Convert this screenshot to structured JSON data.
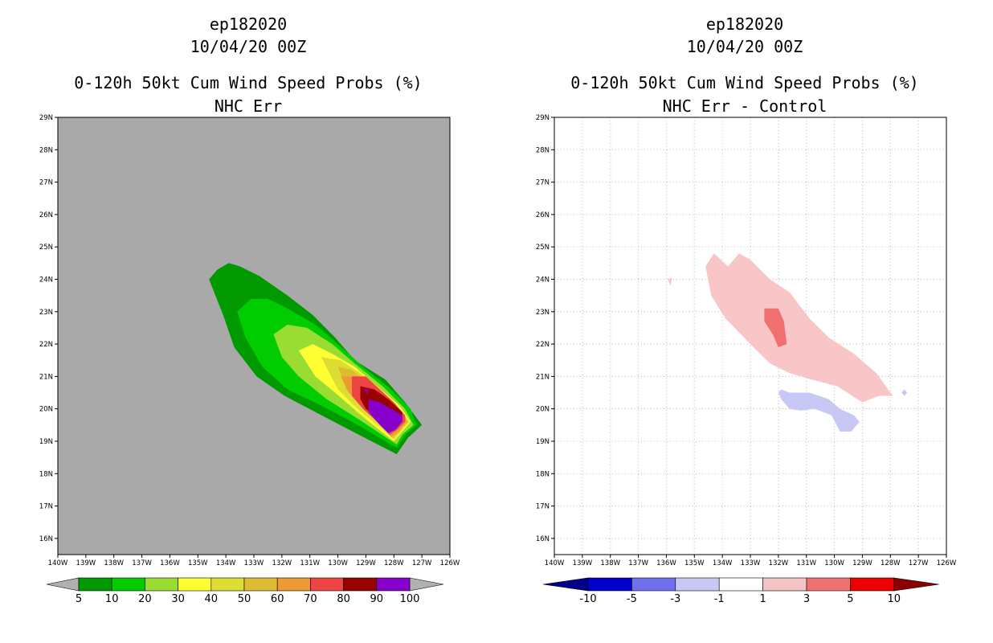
{
  "chart_data": [
    {
      "type": "heatmap",
      "storm_id": "ep182020",
      "date": "10/04/20 00Z",
      "title": "0-120h 50kt Cum Wind Speed Probs (%)",
      "subtitle": "NHC Err",
      "xlim": [
        -140,
        -126
      ],
      "ylim": [
        15.5,
        29
      ],
      "x_ticks": [
        "140W",
        "139W",
        "138W",
        "137W",
        "136W",
        "135W",
        "134W",
        "133W",
        "132W",
        "131W",
        "130W",
        "129W",
        "128W",
        "127W",
        "126W"
      ],
      "y_ticks": [
        "16N",
        "17N",
        "18N",
        "19N",
        "20N",
        "21N",
        "22N",
        "23N",
        "24N",
        "25N",
        "26N",
        "27N",
        "28N",
        "29N"
      ],
      "grid": false,
      "background_color": "#a9a9a9",
      "colorbar": {
        "labels": [
          "5",
          "10",
          "20",
          "30",
          "40",
          "50",
          "60",
          "70",
          "80",
          "90",
          "100"
        ],
        "colors": [
          "#009900",
          "#00cc00",
          "#99dd33",
          "#ffff33",
          "#dddd33",
          "#ddbb33",
          "#ee9933",
          "#ee4444",
          "#990000",
          "#8800cc"
        ],
        "end_colors": [
          "#b0b0b0",
          "#b0b0b0"
        ]
      },
      "contours": [
        {
          "level": 5,
          "color": "#009900",
          "points": [
            [
              -134.6,
              24.0
            ],
            [
              -134.3,
              24.3
            ],
            [
              -133.9,
              24.5
            ],
            [
              -133.5,
              24.4
            ],
            [
              -132.8,
              24.1
            ],
            [
              -131.8,
              23.5
            ],
            [
              -130.9,
              22.9
            ],
            [
              -130.1,
              22.2
            ],
            [
              -129.4,
              21.5
            ],
            [
              -128.3,
              20.9
            ],
            [
              -127.6,
              20.2
            ],
            [
              -127.0,
              19.5
            ],
            [
              -127.5,
              19.1
            ],
            [
              -127.9,
              18.6
            ],
            [
              -128.8,
              19.0
            ],
            [
              -129.7,
              19.4
            ],
            [
              -130.8,
              19.9
            ],
            [
              -131.9,
              20.4
            ],
            [
              -132.9,
              21.0
            ],
            [
              -133.7,
              21.9
            ],
            [
              -134.1,
              22.9
            ],
            [
              -134.6,
              24.0
            ]
          ]
        },
        {
          "level": 10,
          "color": "#00cc00",
          "points": [
            [
              -133.6,
              23.0
            ],
            [
              -133.1,
              23.4
            ],
            [
              -132.5,
              23.4
            ],
            [
              -131.8,
              23.1
            ],
            [
              -130.8,
              22.6
            ],
            [
              -130.0,
              22.0
            ],
            [
              -129.1,
              21.3
            ],
            [
              -128.1,
              20.6
            ],
            [
              -127.4,
              20.0
            ],
            [
              -127.2,
              19.5
            ],
            [
              -127.6,
              19.2
            ],
            [
              -127.9,
              18.8
            ],
            [
              -128.7,
              19.2
            ],
            [
              -129.5,
              19.6
            ],
            [
              -130.6,
              20.1
            ],
            [
              -131.8,
              20.6
            ],
            [
              -132.7,
              21.3
            ],
            [
              -133.3,
              22.2
            ],
            [
              -133.6,
              23.0
            ]
          ]
        },
        {
          "level": 20,
          "color": "#99dd33",
          "points": [
            [
              -132.3,
              22.3
            ],
            [
              -131.8,
              22.6
            ],
            [
              -131.1,
              22.5
            ],
            [
              -130.2,
              22.0
            ],
            [
              -129.4,
              21.4
            ],
            [
              -128.4,
              20.7
            ],
            [
              -127.6,
              20.0
            ],
            [
              -127.3,
              19.5
            ],
            [
              -127.7,
              19.2
            ],
            [
              -127.9,
              18.9
            ],
            [
              -128.6,
              19.3
            ],
            [
              -129.3,
              19.7
            ],
            [
              -130.4,
              20.3
            ],
            [
              -131.4,
              21.0
            ],
            [
              -132.0,
              21.6
            ],
            [
              -132.3,
              22.3
            ]
          ]
        },
        {
          "level": 30,
          "color": "#ffff33",
          "points": [
            [
              -131.4,
              21.8
            ],
            [
              -130.9,
              22.0
            ],
            [
              -130.2,
              21.7
            ],
            [
              -129.4,
              21.3
            ],
            [
              -128.6,
              20.7
            ],
            [
              -127.8,
              20.1
            ],
            [
              -127.4,
              19.6
            ],
            [
              -127.7,
              19.3
            ],
            [
              -128.0,
              19.0
            ],
            [
              -128.6,
              19.4
            ],
            [
              -129.3,
              19.9
            ],
            [
              -130.1,
              20.5
            ],
            [
              -130.8,
              21.0
            ],
            [
              -131.4,
              21.8
            ]
          ]
        },
        {
          "level": 40,
          "color": "#dddd33",
          "points": [
            [
              -130.6,
              21.6
            ],
            [
              -129.9,
              21.5
            ],
            [
              -129.2,
              21.1
            ],
            [
              -128.5,
              20.6
            ],
            [
              -127.8,
              20.0
            ],
            [
              -127.45,
              19.6
            ],
            [
              -127.75,
              19.3
            ],
            [
              -128.0,
              19.05
            ],
            [
              -128.6,
              19.5
            ],
            [
              -129.3,
              20.0
            ],
            [
              -130.0,
              20.6
            ],
            [
              -130.6,
              21.6
            ]
          ]
        },
        {
          "level": 50,
          "color": "#ddbb33",
          "points": [
            [
              -130.0,
              21.3
            ],
            [
              -129.5,
              21.2
            ],
            [
              -128.9,
              20.8
            ],
            [
              -128.3,
              20.4
            ],
            [
              -127.7,
              19.9
            ],
            [
              -127.5,
              19.6
            ],
            [
              -127.8,
              19.3
            ],
            [
              -128.05,
              19.1
            ],
            [
              -128.6,
              19.6
            ],
            [
              -129.2,
              20.1
            ],
            [
              -129.7,
              20.6
            ],
            [
              -130.0,
              21.3
            ]
          ]
        },
        {
          "level": 60,
          "color": "#ee9933",
          "points": [
            [
              -129.9,
              21.0
            ],
            [
              -129.3,
              21.0
            ],
            [
              -128.7,
              20.6
            ],
            [
              -128.1,
              20.2
            ],
            [
              -127.6,
              19.8
            ],
            [
              -127.55,
              19.6
            ],
            [
              -127.85,
              19.3
            ],
            [
              -128.1,
              19.15
            ],
            [
              -128.6,
              19.6
            ],
            [
              -129.2,
              20.1
            ],
            [
              -129.6,
              20.5
            ],
            [
              -129.9,
              21.0
            ]
          ]
        },
        {
          "level": 70,
          "color": "#ee4444",
          "points": [
            [
              -129.5,
              21.0
            ],
            [
              -129.0,
              21.0
            ],
            [
              -128.5,
              20.6
            ],
            [
              -128.0,
              20.2
            ],
            [
              -127.6,
              19.8
            ],
            [
              -127.6,
              19.6
            ],
            [
              -127.9,
              19.35
            ],
            [
              -128.15,
              19.2
            ],
            [
              -128.6,
              19.6
            ],
            [
              -129.1,
              20.0
            ],
            [
              -129.5,
              20.4
            ],
            [
              -129.5,
              21.0
            ]
          ]
        },
        {
          "level": 80,
          "color": "#990000",
          "points": [
            [
              -129.2,
              20.7
            ],
            [
              -128.7,
              20.6
            ],
            [
              -128.2,
              20.3
            ],
            [
              -127.7,
              19.9
            ],
            [
              -127.7,
              19.6
            ],
            [
              -128.0,
              19.4
            ],
            [
              -128.2,
              19.3
            ],
            [
              -128.6,
              19.7
            ],
            [
              -129.0,
              20.0
            ],
            [
              -129.2,
              20.3
            ],
            [
              -129.2,
              20.7
            ]
          ]
        },
        {
          "level": 90,
          "color": "#8800cc",
          "points": [
            [
              -128.9,
              20.3
            ],
            [
              -128.5,
              20.2
            ],
            [
              -128.1,
              20.0
            ],
            [
              -127.7,
              19.8
            ],
            [
              -127.7,
              19.6
            ],
            [
              -127.95,
              19.35
            ],
            [
              -128.2,
              19.25
            ],
            [
              -128.5,
              19.5
            ],
            [
              -128.9,
              19.9
            ],
            [
              -128.9,
              20.3
            ]
          ]
        },
        {
          "level": 90,
          "color": "#8800cc",
          "points": [
            [
              -129.05,
              20.6
            ],
            [
              -128.9,
              20.6
            ],
            [
              -128.95,
              20.45
            ],
            [
              -129.05,
              20.6
            ]
          ]
        }
      ]
    },
    {
      "type": "heatmap",
      "storm_id": "ep182020",
      "date": "10/04/20 00Z",
      "title": "0-120h 50kt Cum Wind Speed Probs (%)",
      "subtitle": "NHC Err - Control",
      "xlim": [
        -140,
        -126
      ],
      "ylim": [
        15.5,
        29
      ],
      "x_ticks": [
        "140W",
        "139W",
        "138W",
        "137W",
        "136W",
        "135W",
        "134W",
        "133W",
        "132W",
        "131W",
        "130W",
        "129W",
        "128W",
        "127W",
        "126W"
      ],
      "y_ticks": [
        "16N",
        "17N",
        "18N",
        "19N",
        "20N",
        "21N",
        "22N",
        "23N",
        "24N",
        "25N",
        "26N",
        "27N",
        "28N",
        "29N"
      ],
      "grid": true,
      "background_color": "#ffffff",
      "colorbar": {
        "labels": [
          "-10",
          "-5",
          "-3",
          "-1",
          "1",
          "3",
          "5",
          "10"
        ],
        "colors": [
          "#0000cc",
          "#7070ee",
          "#c8c8f4",
          "#ffffff",
          "#f4c4c4",
          "#f07070",
          "#ee0000"
        ],
        "end_colors": [
          "#000088",
          "#880000"
        ]
      },
      "contours": [
        {
          "level": 1,
          "color": "#f8c6c6",
          "points": [
            [
              -134.6,
              24.4
            ],
            [
              -134.3,
              24.8
            ],
            [
              -133.8,
              24.4
            ],
            [
              -133.4,
              24.8
            ],
            [
              -133.0,
              24.6
            ],
            [
              -132.3,
              24.0
            ],
            [
              -131.6,
              23.6
            ],
            [
              -130.9,
              22.8
            ],
            [
              -130.2,
              22.2
            ],
            [
              -129.3,
              21.7
            ],
            [
              -128.5,
              21.1
            ],
            [
              -128.0,
              20.5
            ],
            [
              -127.9,
              20.4
            ],
            [
              -128.4,
              20.4
            ],
            [
              -129.0,
              20.2
            ],
            [
              -129.9,
              20.7
            ],
            [
              -130.8,
              20.9
            ],
            [
              -131.6,
              21.1
            ],
            [
              -132.3,
              21.4
            ],
            [
              -133.0,
              22.0
            ],
            [
              -133.9,
              22.8
            ],
            [
              -134.4,
              23.5
            ],
            [
              -134.6,
              24.4
            ]
          ]
        },
        {
          "level": 3,
          "color": "#f07070",
          "points": [
            [
              -132.5,
              23.1
            ],
            [
              -132.0,
              23.1
            ],
            [
              -131.8,
              22.7
            ],
            [
              -131.7,
              22.0
            ],
            [
              -132.0,
              21.9
            ],
            [
              -132.2,
              22.3
            ],
            [
              -132.5,
              22.7
            ],
            [
              -132.5,
              23.1
            ]
          ]
        },
        {
          "level": 1,
          "color": "#f8c6c6",
          "points": [
            [
              -135.95,
              24.0
            ],
            [
              -135.8,
              24.05
            ],
            [
              -135.85,
              23.8
            ],
            [
              -135.95,
              24.0
            ]
          ]
        },
        {
          "level": -1,
          "color": "#c8c8f4",
          "points": [
            [
              -131.9,
              20.6
            ],
            [
              -131.6,
              20.5
            ],
            [
              -130.9,
              20.5
            ],
            [
              -130.2,
              20.3
            ],
            [
              -129.8,
              20.0
            ],
            [
              -129.3,
              19.8
            ],
            [
              -129.1,
              19.6
            ],
            [
              -129.4,
              19.3
            ],
            [
              -129.8,
              19.3
            ],
            [
              -130.1,
              19.8
            ],
            [
              -130.7,
              20.0
            ],
            [
              -131.2,
              19.95
            ],
            [
              -131.6,
              20.0
            ],
            [
              -131.9,
              20.3
            ],
            [
              -132.0,
              20.5
            ],
            [
              -131.9,
              20.6
            ]
          ]
        },
        {
          "level": -1,
          "color": "#c8c8f4",
          "points": [
            [
              -127.5,
              20.6
            ],
            [
              -127.4,
              20.5
            ],
            [
              -127.5,
              20.4
            ],
            [
              -127.6,
              20.5
            ],
            [
              -127.5,
              20.6
            ]
          ]
        }
      ]
    }
  ]
}
